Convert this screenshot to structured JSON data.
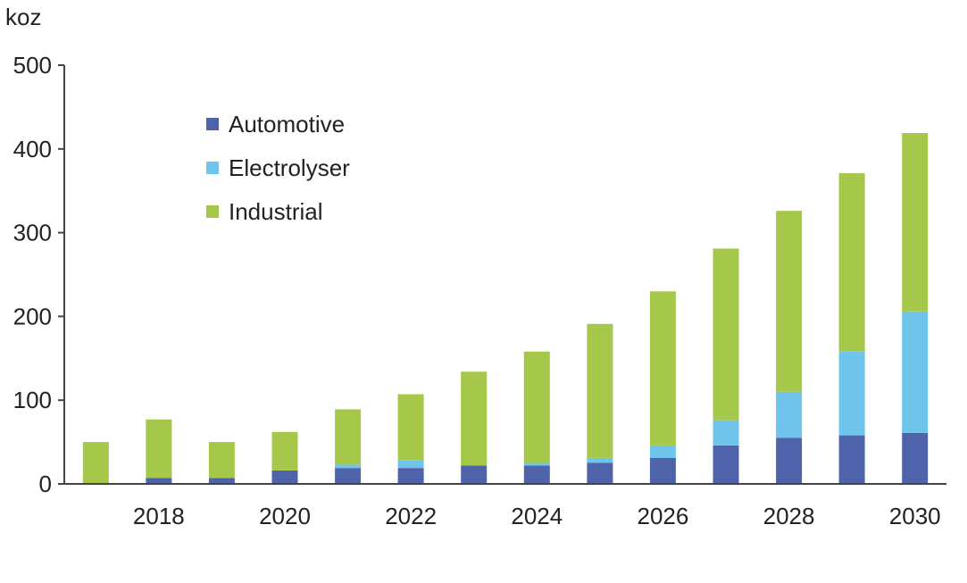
{
  "chart_data": {
    "type": "bar",
    "stacked": true,
    "unit_label": "koz",
    "title": "",
    "xlabel": "",
    "ylabel": "",
    "ylim": [
      0,
      500
    ],
    "y_ticks": [
      "0",
      "100",
      "200",
      "300",
      "400",
      "500"
    ],
    "grid": false,
    "legend_position": "top-left",
    "categories": [
      "2017",
      "2018",
      "2019",
      "2020",
      "2021",
      "2022",
      "2023",
      "2024",
      "2025",
      "2026",
      "2027",
      "2028",
      "2029",
      "2030"
    ],
    "x_tick_labels": [
      "",
      "2018",
      "",
      "2020",
      "",
      "2022",
      "",
      "2024",
      "",
      "2026",
      "",
      "2028",
      "",
      "2030"
    ],
    "series": [
      {
        "name": "Automotive",
        "color": "#4F63AB",
        "values": [
          0,
          7,
          7,
          16,
          19,
          19,
          22,
          22,
          25,
          31,
          46,
          55,
          58,
          61
        ]
      },
      {
        "name": "Electrolyser",
        "color": "#6EC4EA",
        "values": [
          0,
          0,
          0,
          0,
          4,
          9,
          0,
          3,
          6,
          15,
          30,
          55,
          100,
          145
        ]
      },
      {
        "name": "Industrial",
        "color": "#A6C84A",
        "values": [
          50,
          70,
          43,
          46,
          66,
          79,
          112,
          133,
          160,
          184,
          205,
          216,
          213,
          213
        ]
      }
    ]
  }
}
